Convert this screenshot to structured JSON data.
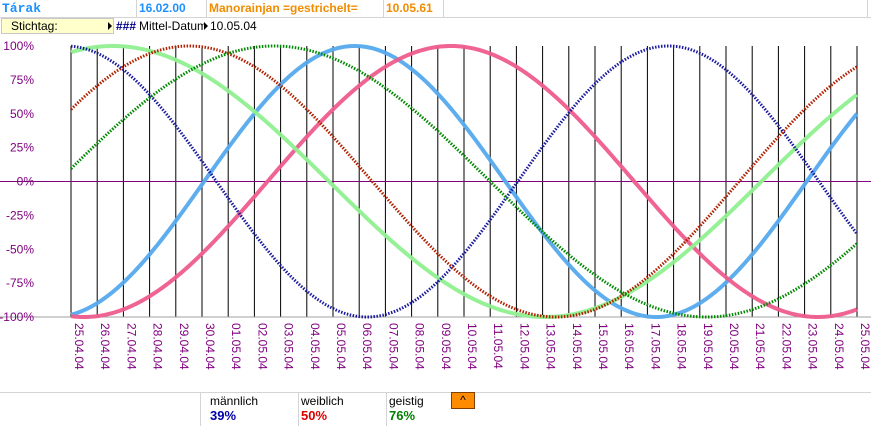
{
  "header": {
    "name": "Tárak",
    "birth_date": "16.02.00",
    "partner_label": "Manorainjan =gestrichelt=",
    "partner_date": "10.05.61"
  },
  "toolbar": {
    "stichtag_label": "Stichtag:",
    "hashes": "###",
    "mittel_label": "Mittel-Datum",
    "mittel_value": "10.05.04"
  },
  "legend": {
    "maennlich_label": "männlich",
    "maennlich_value": "39%",
    "weiblich_label": "weiblich",
    "weiblich_value": "50%",
    "geistig_label": "geistig",
    "geistig_value": "76%",
    "up_button_label": "^"
  },
  "colors": {
    "maennlich": "#55aaee",
    "weiblich": "#ee5c8c",
    "geistig": "#90f090",
    "partner_maennlich": "#1a1a9e",
    "partner_weiblich": "#b02000",
    "partner_geistig": "#008800",
    "axis_text": "#800080"
  },
  "chart_data": {
    "type": "line",
    "x": [
      "25.04.04",
      "26.04.04",
      "27.04.04",
      "28.04.04",
      "29.04.04",
      "30.04.04",
      "01.05.04",
      "02.05.04",
      "03.05.04",
      "04.05.04",
      "05.05.04",
      "06.05.04",
      "07.05.04",
      "08.05.04",
      "09.05.04",
      "10.05.04",
      "11.05.04",
      "12.05.04",
      "13.05.04",
      "14.05.04",
      "15.05.04",
      "16.05.04",
      "17.05.04",
      "18.05.04",
      "19.05.04",
      "20.05.04",
      "21.05.04",
      "22.05.04",
      "23.05.04",
      "24.05.04",
      "25.05.04"
    ],
    "y_ticks": [
      "100%",
      "75%",
      "50%",
      "25%",
      "0%",
      "-25%",
      "-50%",
      "-75%",
      "-100%"
    ],
    "ylim": [
      -100,
      100
    ],
    "grid": "vertical",
    "series": [
      {
        "key": "maennlich",
        "style": "solid",
        "period": 23,
        "cycle_day_at_start": 17.92
      },
      {
        "key": "weiblich",
        "style": "solid",
        "period": 28,
        "cycle_day_at_start": 20.5
      },
      {
        "key": "geistig",
        "style": "solid",
        "period": 33,
        "cycle_day_at_start": 6.65
      },
      {
        "key": "partner_maennlich",
        "style": "dotted",
        "period": 23,
        "cycle_day_at_start": 5.95
      },
      {
        "key": "partner_weiblich",
        "style": "dotted",
        "period": 28,
        "cycle_day_at_start": 2.5
      },
      {
        "key": "partner_geistig",
        "style": "dotted",
        "period": 33,
        "cycle_day_at_start": 0.5
      }
    ]
  }
}
